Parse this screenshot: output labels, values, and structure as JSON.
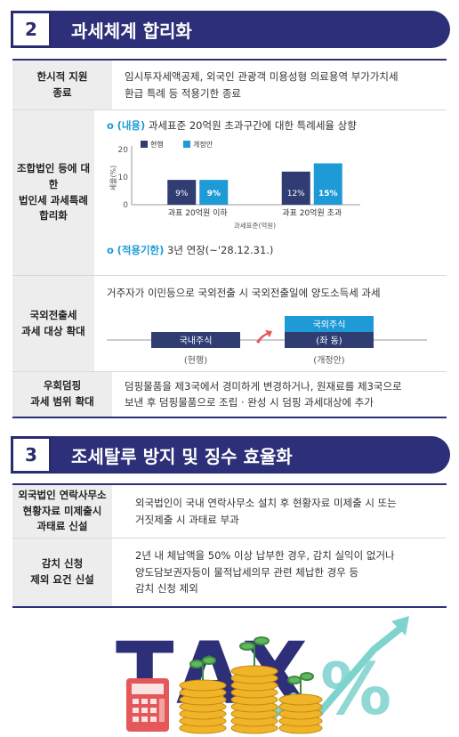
{
  "section2": {
    "number": "2",
    "title": "과세체계 합리화",
    "rows": [
      {
        "head": [
          "한시적 지원",
          "종료"
        ],
        "body": [
          "임시투자세액공제, 외국인 관광객 미용성형 의료용역 부가가치세",
          "환급 특례 등 적용기한 종료"
        ]
      },
      {
        "head": [
          "조합법인 등에 대한",
          "법인세 과세특례",
          "합리화"
        ],
        "bullet1": {
          "ring": "o",
          "key": "(내용)",
          "text": " 과세표준 20억원 초과구간에 대한 특례세율 상향"
        },
        "bullet2": {
          "ring": "o",
          "key": "(적용기한)",
          "text": " 3년 연장(~'28.12.31.)"
        }
      },
      {
        "head": [
          "국외전출세",
          "과세 대상 확대"
        ],
        "body": [
          "거주자가 이민등으로 국외전출 시 국외전출일에 양도소득세 과세"
        ],
        "diagram": {
          "left_box": "국내주식",
          "right_top_box": "국외주식",
          "right_bottom_box": "(좌 동)",
          "left_caption": "(현행)",
          "right_caption": "(개정안)"
        }
      },
      {
        "head": [
          "우회덤핑",
          "과세 범위 확대"
        ],
        "body": [
          "덤핑물품을 제3국에서 경미하게 변경하거나, 원재료를 제3국으로",
          "보낸 후 덤핑물품으로 조립 · 완성 시 덤핑 과세대상에 추가"
        ]
      }
    ]
  },
  "chart_data": {
    "type": "bar",
    "categories": [
      "과표 20억원 이하",
      "과표 20억원 초과"
    ],
    "series": [
      {
        "name": "현행",
        "values": [
          9,
          12
        ],
        "labels": [
          "9%",
          "12%"
        ],
        "color": "#2f3d73"
      },
      {
        "name": "개정안",
        "values": [
          9,
          15
        ],
        "labels": [
          "9%",
          "15%"
        ],
        "color": "#1e9ad6"
      }
    ],
    "ylabel": "세율(%)",
    "xlabel": "과세표준(억원)",
    "yticks": [
      "0",
      "10",
      "20"
    ],
    "ylim": [
      0,
      20
    ],
    "legend": "top-left"
  },
  "section3": {
    "number": "3",
    "title": "조세탈루 방지 및 징수 효율화",
    "rows": [
      {
        "head": [
          "외국법인 연락사무소",
          "현황자료 미제출시",
          "과태료 신설"
        ],
        "body": [
          "외국법인이 국내 연락사무소 설치 후 현황자료 미제출 시 또는",
          "거짓제출 시 과태료 부과"
        ]
      },
      {
        "head": [
          "감치 신청",
          "제외 요건 신설"
        ],
        "body": [
          "2년 내 체납액을 50% 이상 납부한 경우, 감치 실익이 없거나",
          "양도담보권자등이 물적납세의무 관련 체납한 경우 등",
          "감치 신청 제외"
        ]
      }
    ]
  },
  "illustration": {
    "letters": [
      "T",
      "A",
      "X"
    ],
    "percent_symbol": "%",
    "calculator_icon": "calculator-icon",
    "coins_icon": "coin-stack-icon",
    "arrow_icon": "trend-arrow-icon",
    "colors": {
      "navy": "#2d2f78",
      "blue": "#1e9ad6",
      "teal": "#7fd3cf",
      "gold": "#f0b429",
      "red": "#e4585a"
    }
  }
}
